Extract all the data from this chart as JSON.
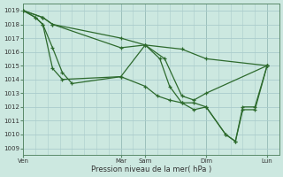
{
  "background_color": "#cce8e0",
  "grid_color": "#aacccc",
  "line_color": "#2d6a2d",
  "marker_color": "#2d6a2d",
  "ylabel_ticks": [
    1009,
    1010,
    1011,
    1012,
    1013,
    1014,
    1015,
    1016,
    1017,
    1018,
    1019
  ],
  "xlabel": "Pression niveau de la mer( hPa )",
  "xtick_labels": [
    "Ven",
    "Mar",
    "Sam",
    "Dim",
    "Lun"
  ],
  "xtick_positions": [
    0,
    40,
    50,
    75,
    100
  ],
  "ylim": [
    1008.5,
    1019.5
  ],
  "xlim": [
    0,
    105
  ],
  "lines": [
    {
      "x": [
        0,
        8,
        12,
        40,
        50,
        65,
        75,
        100
      ],
      "y": [
        1019,
        1018.5,
        1018,
        1017,
        1016.5,
        1016.2,
        1015.5,
        1015
      ]
    },
    {
      "x": [
        0,
        8,
        12,
        40,
        50,
        58,
        65,
        70,
        75,
        100
      ],
      "y": [
        1019,
        1018.5,
        1018,
        1016.3,
        1016.5,
        1015.5,
        1012.8,
        1012.5,
        1013,
        1015
      ]
    },
    {
      "x": [
        0,
        5,
        8,
        12,
        16,
        40,
        50,
        56,
        60,
        65,
        70,
        75,
        83,
        87,
        90,
        95,
        100
      ],
      "y": [
        1019,
        1018.5,
        1018,
        1014.8,
        1014,
        1014.2,
        1016.5,
        1015.5,
        1013.5,
        1012.3,
        1012.3,
        1012,
        1010,
        1009.5,
        1011.8,
        1011.8,
        1015
      ]
    },
    {
      "x": [
        0,
        5,
        8,
        12,
        16,
        20,
        40,
        50,
        55,
        60,
        65,
        70,
        75,
        83,
        87,
        90,
        95,
        100
      ],
      "y": [
        1019,
        1018.5,
        1018,
        1016.3,
        1014.5,
        1013.7,
        1014.2,
        1013.5,
        1012.8,
        1012.5,
        1012.3,
        1011.8,
        1012,
        1010,
        1009.5,
        1012,
        1012,
        1015
      ]
    }
  ]
}
